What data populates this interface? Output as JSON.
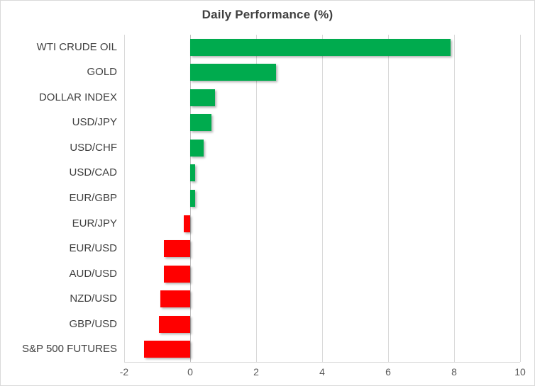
{
  "chart_data": {
    "type": "bar",
    "orientation": "horizontal",
    "title": "Daily Performance (%)",
    "categories": [
      "WTI CRUDE OIL",
      "GOLD",
      "DOLLAR INDEX",
      "USD/JPY",
      "USD/CHF",
      "USD/CAD",
      "EUR/GBP",
      "EUR/JPY",
      "EUR/USD",
      "AUD/USD",
      "NZD/USD",
      "GBP/USD",
      "S&P 500 FUTURES"
    ],
    "values": [
      7.9,
      2.6,
      0.75,
      0.65,
      0.4,
      0.15,
      0.15,
      -0.2,
      -0.8,
      -0.8,
      -0.9,
      -0.95,
      -1.4
    ],
    "xlim": [
      -2,
      10
    ],
    "xticks": [
      -2,
      0,
      2,
      4,
      6,
      8,
      10
    ],
    "grid": "vertical-gridlines-on",
    "legend": "none",
    "colors": {
      "positive_bar": "#00AB4E",
      "negative_bar": "#FF0000",
      "gridline": "#D9D9D9",
      "zero_axis_line": "#C0C0C0",
      "title_text": "#404040",
      "category_text": "#404040",
      "tick_text": "#595959",
      "background": "#FFFFFF"
    }
  }
}
